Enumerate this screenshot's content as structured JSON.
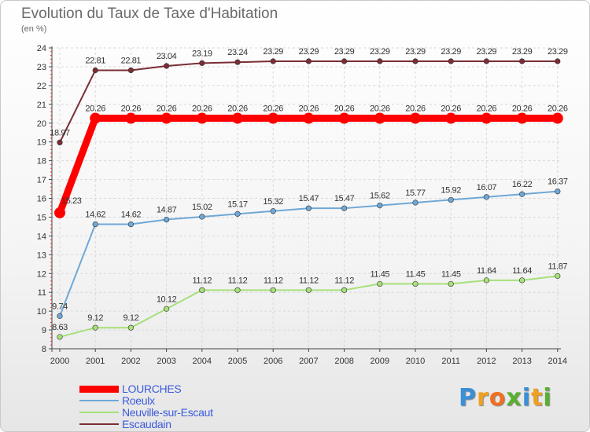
{
  "chart_data": {
    "type": "line",
    "title": "Evolution du Taux de Taxe d'Habitation",
    "ylabel": "(en %)",
    "xlabel": "",
    "ylim": [
      8,
      24
    ],
    "yticks": [
      "8",
      "9",
      "10",
      "11",
      "12",
      "13",
      "14",
      "15",
      "16",
      "17",
      "18",
      "19",
      "20",
      "21",
      "22",
      "23",
      "24"
    ],
    "categories": [
      "2000",
      "2001",
      "2002",
      "2003",
      "2004",
      "2005",
      "2006",
      "2007",
      "2008",
      "2009",
      "2010",
      "2011",
      "2012",
      "2013",
      "2014"
    ],
    "grid": true,
    "series": [
      {
        "name": "LOURCHES",
        "color": "#ff0000",
        "values": [
          15.23,
          20.26,
          20.26,
          20.26,
          20.26,
          20.26,
          20.26,
          20.26,
          20.26,
          20.26,
          20.26,
          20.26,
          20.26,
          20.26,
          20.26
        ],
        "labels": [
          "15.23",
          "20.26",
          "20.26",
          "20.26",
          "20.26",
          "20.26",
          "20.26",
          "20.26",
          "20.26",
          "20.26",
          "20.26",
          "20.26",
          "20.26",
          "20.26",
          "20.26"
        ]
      },
      {
        "name": "Roeulx",
        "color": "#6fa8d6",
        "values": [
          9.74,
          14.62,
          14.62,
          14.87,
          15.02,
          15.17,
          15.32,
          15.47,
          15.47,
          15.62,
          15.77,
          15.92,
          16.07,
          16.22,
          16.37
        ],
        "labels": [
          "9.74",
          "14.62",
          "14.62",
          "14.87",
          "15.02",
          "15.17",
          "15.32",
          "15.47",
          "15.47",
          "15.62",
          "15.77",
          "15.92",
          "16.07",
          "16.22",
          "16.37"
        ]
      },
      {
        "name": "Neuville-sur-Escaut",
        "color": "#a6e07a",
        "values": [
          8.63,
          9.12,
          9.12,
          10.12,
          11.12,
          11.12,
          11.12,
          11.12,
          11.12,
          11.45,
          11.45,
          11.45,
          11.64,
          11.64,
          11.87
        ],
        "labels": [
          "8.63",
          "9.12",
          "9.12",
          "10.12",
          "11.12",
          "11.12",
          "11.12",
          "11.12",
          "11.12",
          "11.45",
          "11.45",
          "11.45",
          "11.64",
          "11.64",
          "11.87"
        ]
      },
      {
        "name": "Escaudain",
        "color": "#7a2e34",
        "values": [
          18.97,
          22.81,
          22.81,
          23.04,
          23.19,
          23.24,
          23.29,
          23.29,
          23.29,
          23.29,
          23.29,
          23.29,
          23.29,
          23.29,
          23.29
        ],
        "labels": [
          "18.97",
          "22.81",
          "22.81",
          "23.04",
          "23.19",
          "23.24",
          "23.29",
          "23.29",
          "23.29",
          "23.29",
          "23.29",
          "23.29",
          "23.29",
          "23.29",
          "23.29"
        ]
      }
    ],
    "legend_position": "bottom-left"
  },
  "logo": {
    "text": "Proxiti",
    "letters": [
      "P",
      "r",
      "o",
      "x",
      "i",
      "t",
      "i"
    ],
    "colors": [
      "#3a8fd6",
      "#f0a020",
      "#f07020",
      "#58b030",
      "#3a8fd6",
      "#f0a020",
      "#58b030"
    ]
  }
}
